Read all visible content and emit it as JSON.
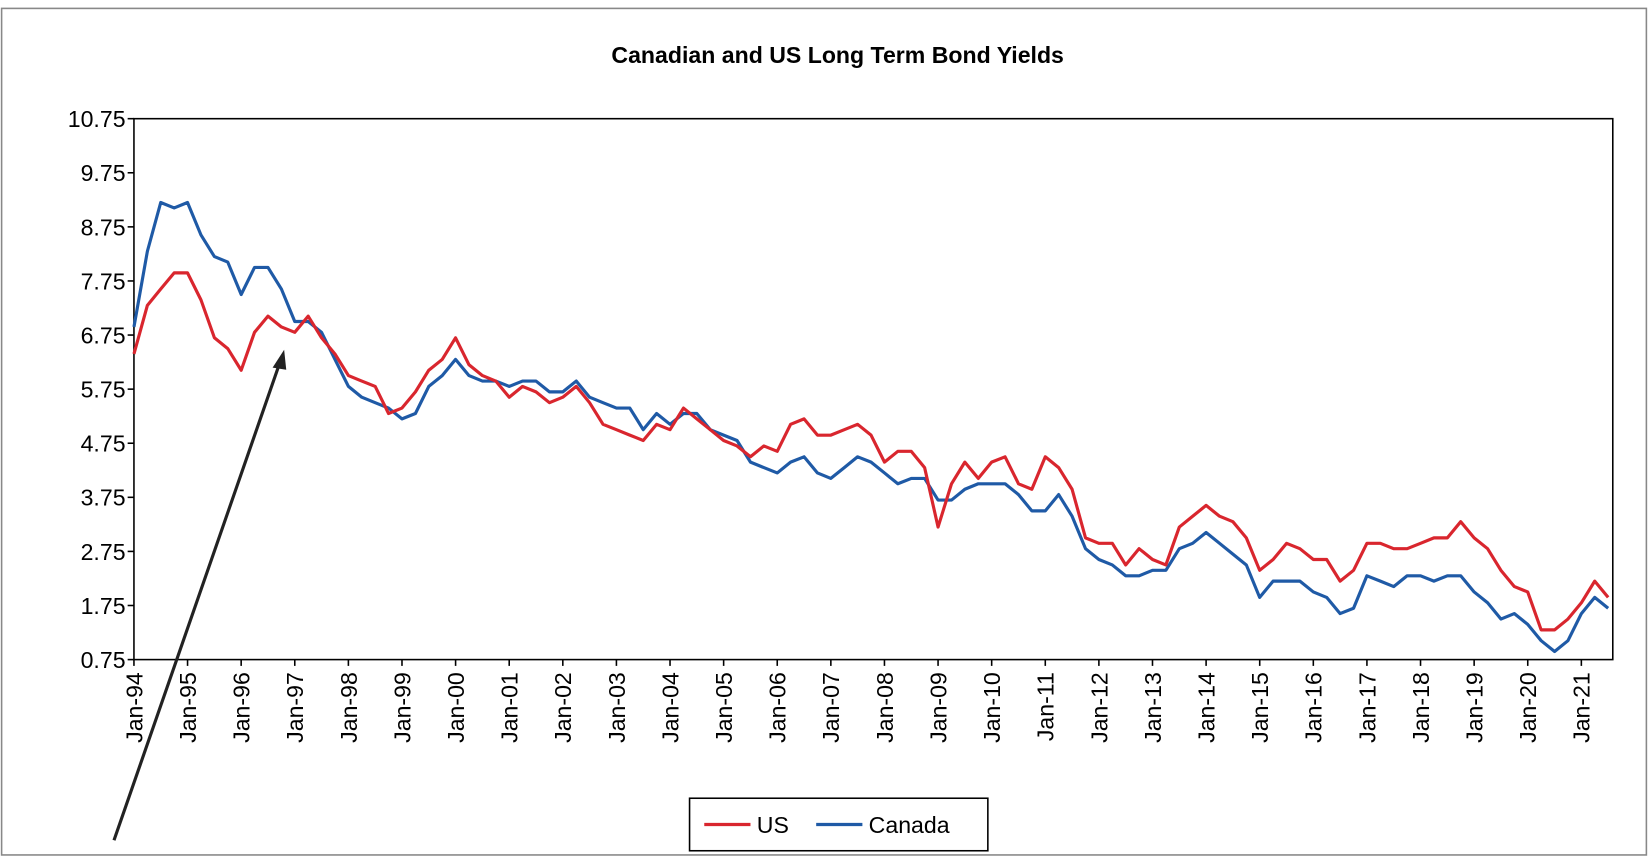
{
  "chart_data": {
    "type": "line",
    "title": "Canadian and US Long Term Bond Yields",
    "categories": [
      "Jan-94",
      null,
      null,
      null,
      "Jan-95",
      null,
      null,
      null,
      "Jan-96",
      null,
      null,
      null,
      "Jan-97",
      null,
      null,
      null,
      "Jan-98",
      null,
      null,
      null,
      "Jan-99",
      null,
      null,
      null,
      "Jan-00",
      null,
      null,
      null,
      "Jan-01",
      null,
      null,
      null,
      "Jan-02",
      null,
      null,
      null,
      "Jan-03",
      null,
      null,
      null,
      "Jan-04",
      null,
      null,
      null,
      "Jan-05",
      null,
      null,
      null,
      "Jan-06",
      null,
      null,
      null,
      "Jan-07",
      null,
      null,
      null,
      "Jan-08",
      null,
      null,
      null,
      "Jan-09",
      null,
      null,
      null,
      "Jan-10",
      null,
      null,
      null,
      "Jan-11",
      null,
      null,
      null,
      "Jan-12",
      null,
      null,
      null,
      "Jan-13",
      null,
      null,
      null,
      "Jan-14",
      null,
      null,
      null,
      "Jan-15",
      null,
      null,
      null,
      "Jan-16",
      null,
      null,
      null,
      "Jan-17",
      null,
      null,
      null,
      "Jan-18",
      null,
      null,
      null,
      "Jan-19",
      null,
      null,
      null,
      "Jan-20",
      null,
      null,
      null,
      "Jan-21",
      null,
      null
    ],
    "series": [
      {
        "name": "US",
        "color": "#d9262e",
        "values": [
          6.4,
          7.3,
          7.6,
          7.9,
          7.9,
          7.4,
          6.7,
          6.5,
          6.1,
          6.8,
          7.1,
          6.9,
          6.8,
          7.1,
          6.7,
          6.4,
          6.0,
          5.9,
          5.8,
          5.3,
          5.4,
          5.7,
          6.1,
          6.3,
          6.7,
          6.2,
          6.0,
          5.9,
          5.6,
          5.8,
          5.7,
          5.5,
          5.6,
          5.8,
          5.5,
          5.1,
          5.0,
          4.9,
          4.8,
          5.1,
          5.0,
          5.4,
          5.2,
          5.0,
          4.8,
          4.7,
          4.5,
          4.7,
          4.6,
          5.1,
          5.2,
          4.9,
          4.9,
          5.0,
          5.1,
          4.9,
          4.4,
          4.6,
          4.6,
          4.3,
          3.2,
          4.0,
          4.4,
          4.1,
          4.4,
          4.5,
          4.0,
          3.9,
          4.5,
          4.3,
          3.9,
          3.0,
          2.9,
          2.9,
          2.5,
          2.8,
          2.6,
          2.5,
          3.2,
          3.4,
          3.6,
          3.4,
          3.3,
          3.0,
          2.4,
          2.6,
          2.9,
          2.8,
          2.6,
          2.6,
          2.2,
          2.4,
          2.9,
          2.9,
          2.8,
          2.8,
          2.9,
          3.0,
          3.0,
          3.3,
          3.0,
          2.8,
          2.4,
          2.1,
          2.0,
          1.3,
          1.3,
          1.5,
          1.8,
          2.2,
          1.9
        ]
      },
      {
        "name": "Canada",
        "color": "#1f5aa6",
        "values": [
          6.9,
          8.3,
          9.2,
          9.1,
          9.2,
          8.6,
          8.2,
          8.1,
          7.5,
          8.0,
          8.0,
          7.6,
          7.0,
          7.0,
          6.8,
          6.3,
          5.8,
          5.6,
          5.5,
          5.4,
          5.2,
          5.3,
          5.8,
          6.0,
          6.3,
          6.0,
          5.9,
          5.9,
          5.8,
          5.9,
          5.9,
          5.7,
          5.7,
          5.9,
          5.6,
          5.5,
          5.4,
          5.4,
          5.0,
          5.3,
          5.1,
          5.3,
          5.3,
          5.0,
          4.9,
          4.8,
          4.4,
          4.3,
          4.2,
          4.4,
          4.5,
          4.2,
          4.1,
          4.3,
          4.5,
          4.4,
          4.2,
          4.0,
          4.1,
          4.1,
          3.7,
          3.7,
          3.9,
          4.0,
          4.0,
          4.0,
          3.8,
          3.5,
          3.5,
          3.8,
          3.4,
          2.8,
          2.6,
          2.5,
          2.3,
          2.3,
          2.4,
          2.4,
          2.8,
          2.9,
          3.1,
          2.9,
          2.7,
          2.5,
          1.9,
          2.2,
          2.2,
          2.2,
          2.0,
          1.9,
          1.6,
          1.7,
          2.3,
          2.2,
          2.1,
          2.3,
          2.3,
          2.2,
          2.3,
          2.3,
          2.0,
          1.8,
          1.5,
          1.6,
          1.4,
          1.1,
          0.9,
          1.1,
          1.6,
          1.9,
          1.7
        ]
      }
    ],
    "ylim": [
      0.75,
      10.75
    ],
    "yticks": [
      0.75,
      1.75,
      2.75,
      3.75,
      4.75,
      5.75,
      6.75,
      7.75,
      8.75,
      9.75,
      10.75
    ],
    "grid": false,
    "legend": "bottom"
  }
}
